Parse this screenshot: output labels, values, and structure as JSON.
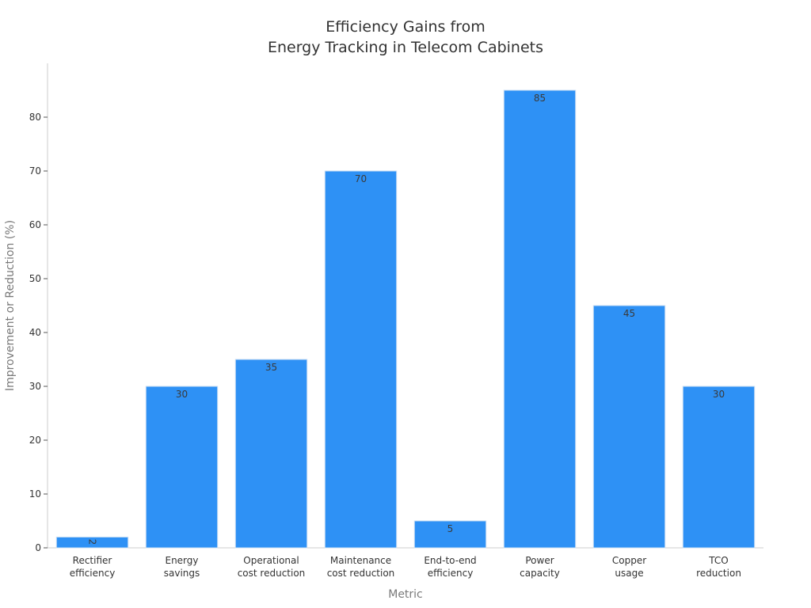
{
  "chart_data": {
    "type": "bar",
    "title_lines": [
      "Efficiency Gains from",
      "Energy Tracking in Telecom Cabinets"
    ],
    "xlabel": "Metric",
    "ylabel": "Improvement or Reduction (%)",
    "categories": [
      [
        "Rectifier",
        "efficiency"
      ],
      [
        "Energy",
        "savings"
      ],
      [
        "Operational",
        "cost reduction"
      ],
      [
        "Maintenance",
        "cost reduction"
      ],
      [
        "End-to-end",
        "efficiency"
      ],
      [
        "Power",
        "capacity"
      ],
      [
        "Copper",
        "usage"
      ],
      [
        "TCO",
        "reduction"
      ]
    ],
    "values": [
      2,
      30,
      35,
      70,
      5,
      85,
      45,
      30
    ],
    "data_labels": [
      "2",
      "30",
      "35",
      "70",
      "5",
      "85",
      "45",
      "30"
    ],
    "yticks": [
      "0",
      "10",
      "20",
      "30",
      "40",
      "50",
      "60",
      "70",
      "80"
    ],
    "ylim": [
      0,
      90
    ],
    "grid": false,
    "legend": "none",
    "bar_color": "#2e91f5"
  }
}
